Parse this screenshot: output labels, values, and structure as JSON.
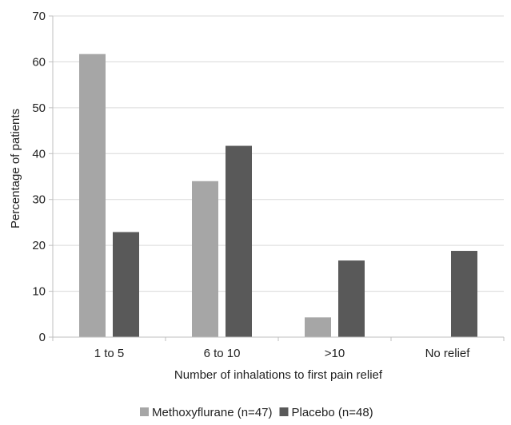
{
  "chart_data": {
    "type": "bar",
    "categories": [
      "1 to 5",
      "6 to 10",
      ">10",
      "No relief"
    ],
    "series": [
      {
        "name": "Methoxyflurane (n=47)",
        "values": [
          61.7,
          34.0,
          4.3,
          0
        ],
        "color": "#a6a6a6"
      },
      {
        "name": "Placebo (n=48)",
        "values": [
          22.9,
          41.7,
          16.7,
          18.8
        ],
        "color": "#595959"
      }
    ],
    "xlabel": "Number of inhalations to first pain relief",
    "ylabel": "Percentage of patients",
    "ylim": [
      0,
      70
    ],
    "yticks": [
      "0",
      "10",
      "20",
      "30",
      "40",
      "50",
      "60",
      "70"
    ],
    "grid": true,
    "legend_position": "bottom"
  }
}
